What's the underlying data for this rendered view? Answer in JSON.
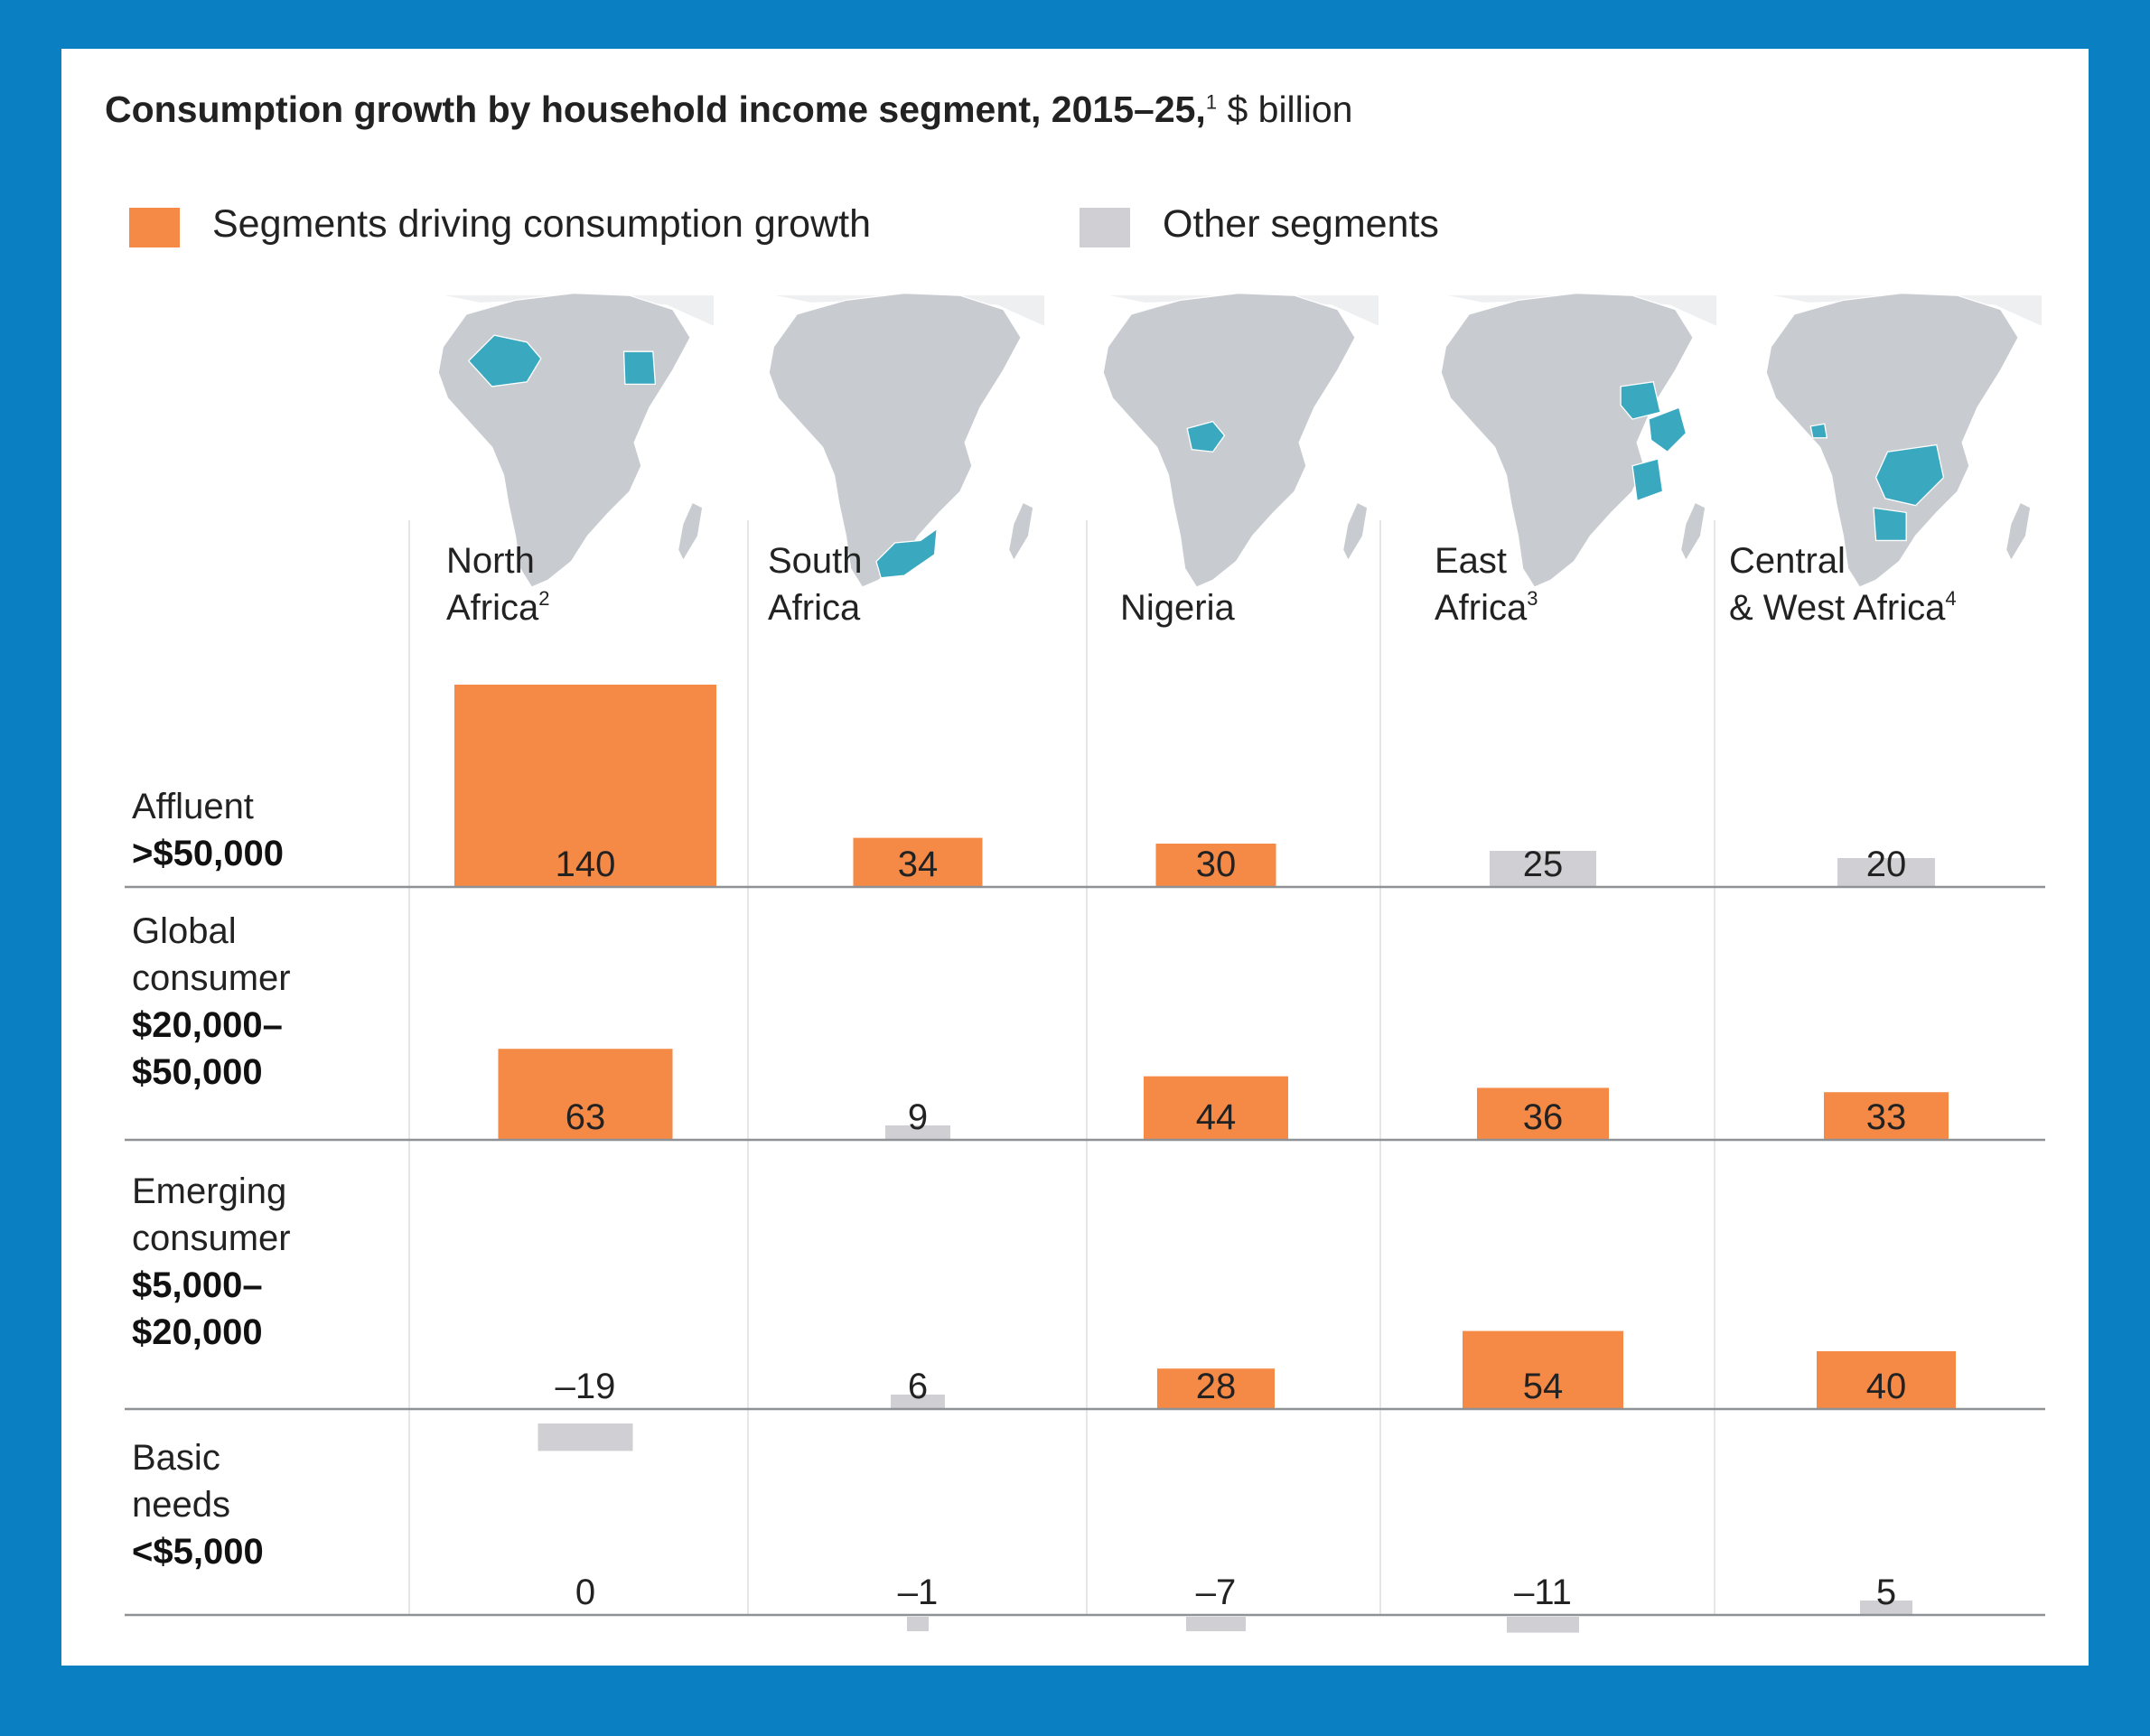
{
  "header": {
    "title_bold": "Consumption growth by household income segment, 2015–25,",
    "title_footnote": "1",
    "title_unit": " $ billion"
  },
  "legend": [
    {
      "label": "Segments driving consumption growth",
      "color": "#f58a47"
    },
    {
      "label": "Other segments",
      "color": "#d0d0d4"
    }
  ],
  "colors": {
    "driving": "#f58a47",
    "other": "#d0d0d4",
    "map_land": "#c8ccd0",
    "map_highlight": "#3aa9c0",
    "background": "#0a7fc2"
  },
  "chart_data": {
    "type": "bar",
    "title": "Consumption growth by household income segment, 2015–25,1 $ billion",
    "unit": "$ billion",
    "categories": [
      {
        "lines": [
          "North",
          "Africa"
        ],
        "footnote": "2",
        "map_icon": "africa-map-north-africa-highlighted"
      },
      {
        "lines": [
          "South",
          "Africa"
        ],
        "footnote": "",
        "map_icon": "africa-map-south-africa-highlighted"
      },
      {
        "lines": [
          "",
          "Nigeria"
        ],
        "footnote": "",
        "map_icon": "africa-map-nigeria-highlighted"
      },
      {
        "lines": [
          "East",
          "Africa"
        ],
        "footnote": "3",
        "map_icon": "africa-map-east-africa-highlighted"
      },
      {
        "lines": [
          "Central",
          "& West Africa"
        ],
        "footnote": "4",
        "map_icon": "africa-map-central-west-africa-highlighted"
      }
    ],
    "series": [
      {
        "name": "Affluent >$50,000",
        "label_light": [
          "Affluent"
        ],
        "label_bold": [
          ">$50,000"
        ],
        "values": [
          140,
          34,
          30,
          25,
          20
        ],
        "label_text": [
          "140",
          "34",
          "30",
          "25",
          "20"
        ],
        "driving": [
          true,
          true,
          true,
          false,
          false
        ]
      },
      {
        "name": "Global consumer $20,000–$50,000",
        "label_light": [
          "Global",
          "consumer"
        ],
        "label_bold": [
          "$20,000–",
          "$50,000"
        ],
        "values": [
          63,
          9,
          44,
          36,
          33
        ],
        "label_text": [
          "63",
          "9",
          "44",
          "36",
          "33"
        ],
        "driving": [
          true,
          false,
          true,
          true,
          true
        ]
      },
      {
        "name": "Emerging consumer $5,000–$20,000",
        "label_light": [
          "Emerging",
          "consumer"
        ],
        "label_bold": [
          "$5,000–",
          "$20,000"
        ],
        "values": [
          -19,
          6,
          28,
          54,
          40
        ],
        "label_text": [
          "–19",
          "6",
          "28",
          "54",
          "40"
        ],
        "driving": [
          false,
          false,
          true,
          true,
          true
        ]
      },
      {
        "name": "Basic needs <$5,000",
        "label_light": [
          "Basic",
          "needs"
        ],
        "label_bold": [
          "<$5,000"
        ],
        "values": [
          0,
          -1,
          -7,
          -11,
          5
        ],
        "label_text": [
          "0",
          "–1",
          "–7",
          "–11",
          "5"
        ],
        "driving": [
          false,
          false,
          false,
          false,
          false
        ]
      }
    ]
  }
}
